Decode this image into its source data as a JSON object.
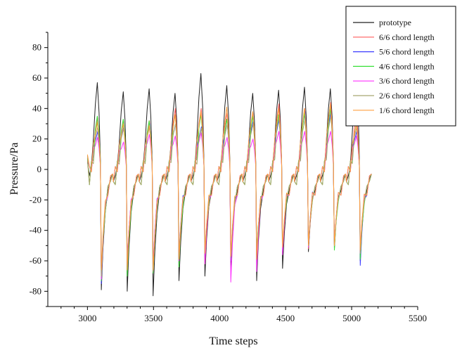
{
  "chart_data": {
    "type": "line",
    "xlabel": "Time steps",
    "ylabel": "Pressure/Pa",
    "xlim": [
      2700,
      5500
    ],
    "ylim": [
      -90,
      90
    ],
    "x_ticks": [
      3000,
      3500,
      4000,
      4500,
      5000,
      5500
    ],
    "y_ticks": [
      -80,
      -60,
      -40,
      -20,
      0,
      20,
      40,
      60,
      80
    ],
    "grid": false,
    "legend_position": "top-right",
    "period": 196,
    "cycle_starts": [
      3000,
      3196,
      3392,
      3588,
      3784,
      3980,
      4176,
      4372,
      4568,
      4764
    ],
    "series": [
      {
        "name": "prototype",
        "color": "#222222",
        "peaks": [
          57,
          51,
          53,
          50,
          63,
          55,
          50,
          52,
          54,
          53,
          69
        ],
        "troughs": [
          -79,
          -80,
          -83,
          -73,
          -70,
          -65,
          -73,
          -65,
          -54,
          -52,
          -60
        ]
      },
      {
        "name": "6/6 chord length",
        "color": "#ff5b5b",
        "peaks": [
          34,
          32,
          32,
          40,
          40,
          37,
          37,
          43,
          40,
          44,
          36
        ],
        "troughs": [
          -72,
          -62,
          -65,
          -59,
          -62,
          -60,
          -58,
          -52,
          -52,
          -50,
          -52
        ]
      },
      {
        "name": "5/6 chord length",
        "color": "#3b3bff",
        "peaks": [
          25,
          28,
          30,
          30,
          28,
          30,
          32,
          33,
          38,
          38,
          25
        ],
        "troughs": [
          -75,
          -63,
          -62,
          -56,
          -58,
          -60,
          -58,
          -53,
          -49,
          -50,
          -63
        ]
      },
      {
        "name": "4/6 chord length",
        "color": "#36e036",
        "peaks": [
          35,
          33,
          32,
          36,
          36,
          33,
          35,
          36,
          37,
          40,
          30
        ],
        "troughs": [
          -73,
          -70,
          -68,
          -64,
          -58,
          -59,
          -56,
          -54,
          -51,
          -53,
          -59
        ]
      },
      {
        "name": "3/6 chord length",
        "color": "#ff33ff",
        "peaks": [
          21,
          18,
          23,
          22,
          24,
          21,
          20,
          25,
          25,
          25,
          22
        ],
        "troughs": [
          -72,
          -63,
          -63,
          -60,
          -62,
          -74,
          -67,
          -56,
          -51,
          -50,
          -55
        ]
      },
      {
        "name": "2/6 chord length",
        "color": "#a8a870",
        "peaks": [
          28,
          27,
          28,
          30,
          27,
          30,
          30,
          35,
          33,
          35,
          28
        ],
        "troughs": [
          -70,
          -65,
          -67,
          -57,
          -55,
          -57,
          -57,
          -50,
          -50,
          -50,
          -55
        ]
      },
      {
        "name": "1/6 chord length",
        "color": "#ffa040",
        "peaks": [
          31,
          30,
          29,
          36,
          38,
          41,
          38,
          40,
          40,
          43,
          30
        ],
        "troughs": [
          -66,
          -66,
          -66,
          -59,
          -55,
          -57,
          -59,
          -51,
          -50,
          -50,
          -53
        ]
      }
    ]
  }
}
